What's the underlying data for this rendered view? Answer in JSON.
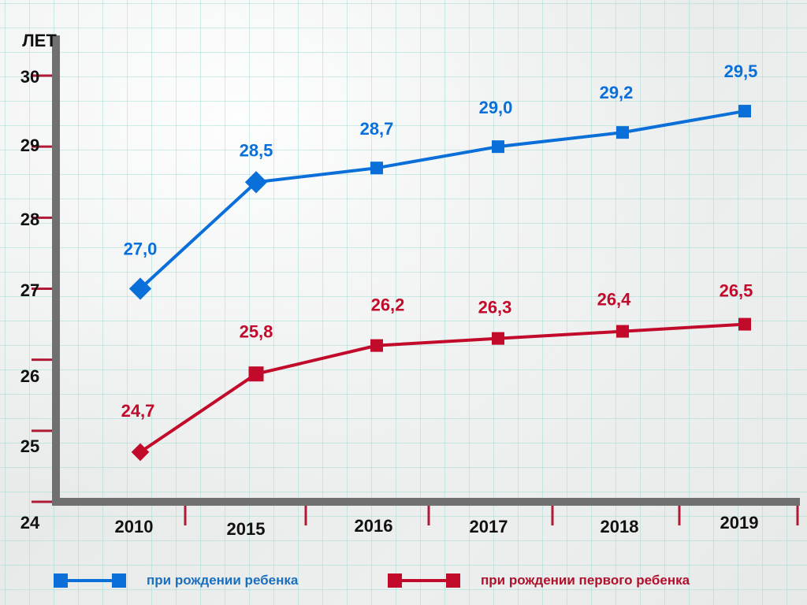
{
  "chart_data": {
    "type": "line",
    "title": "",
    "xlabel": "",
    "ylabel": "ЛЕТ",
    "categories": [
      "2010",
      "2015",
      "2016",
      "2017",
      "2018",
      "2019"
    ],
    "y_ticks": [
      "24",
      "25",
      "26",
      "27",
      "28",
      "29",
      "30"
    ],
    "ylim": [
      24,
      30
    ],
    "grid": false,
    "legend_position": "bottom",
    "series": [
      {
        "name": "при рождении ребенка",
        "color": "#0a6fd8",
        "values": [
          27.0,
          28.5,
          28.7,
          29.0,
          29.2,
          29.5
        ],
        "labels": [
          "27,0",
          "28,5",
          "28,7",
          "29,0",
          "29,2",
          "29,5"
        ],
        "marker": "square"
      },
      {
        "name": "при рождении первого ребенка",
        "color": "#c20a2a",
        "values": [
          24.7,
          25.8,
          26.2,
          26.3,
          26.4,
          26.5
        ],
        "labels": [
          "24,7",
          "25,8",
          "26,2",
          "26,3",
          "26,4",
          "26,5"
        ],
        "marker": "square"
      }
    ],
    "axis_color": "#707070",
    "tick_color": "#b01a35"
  }
}
